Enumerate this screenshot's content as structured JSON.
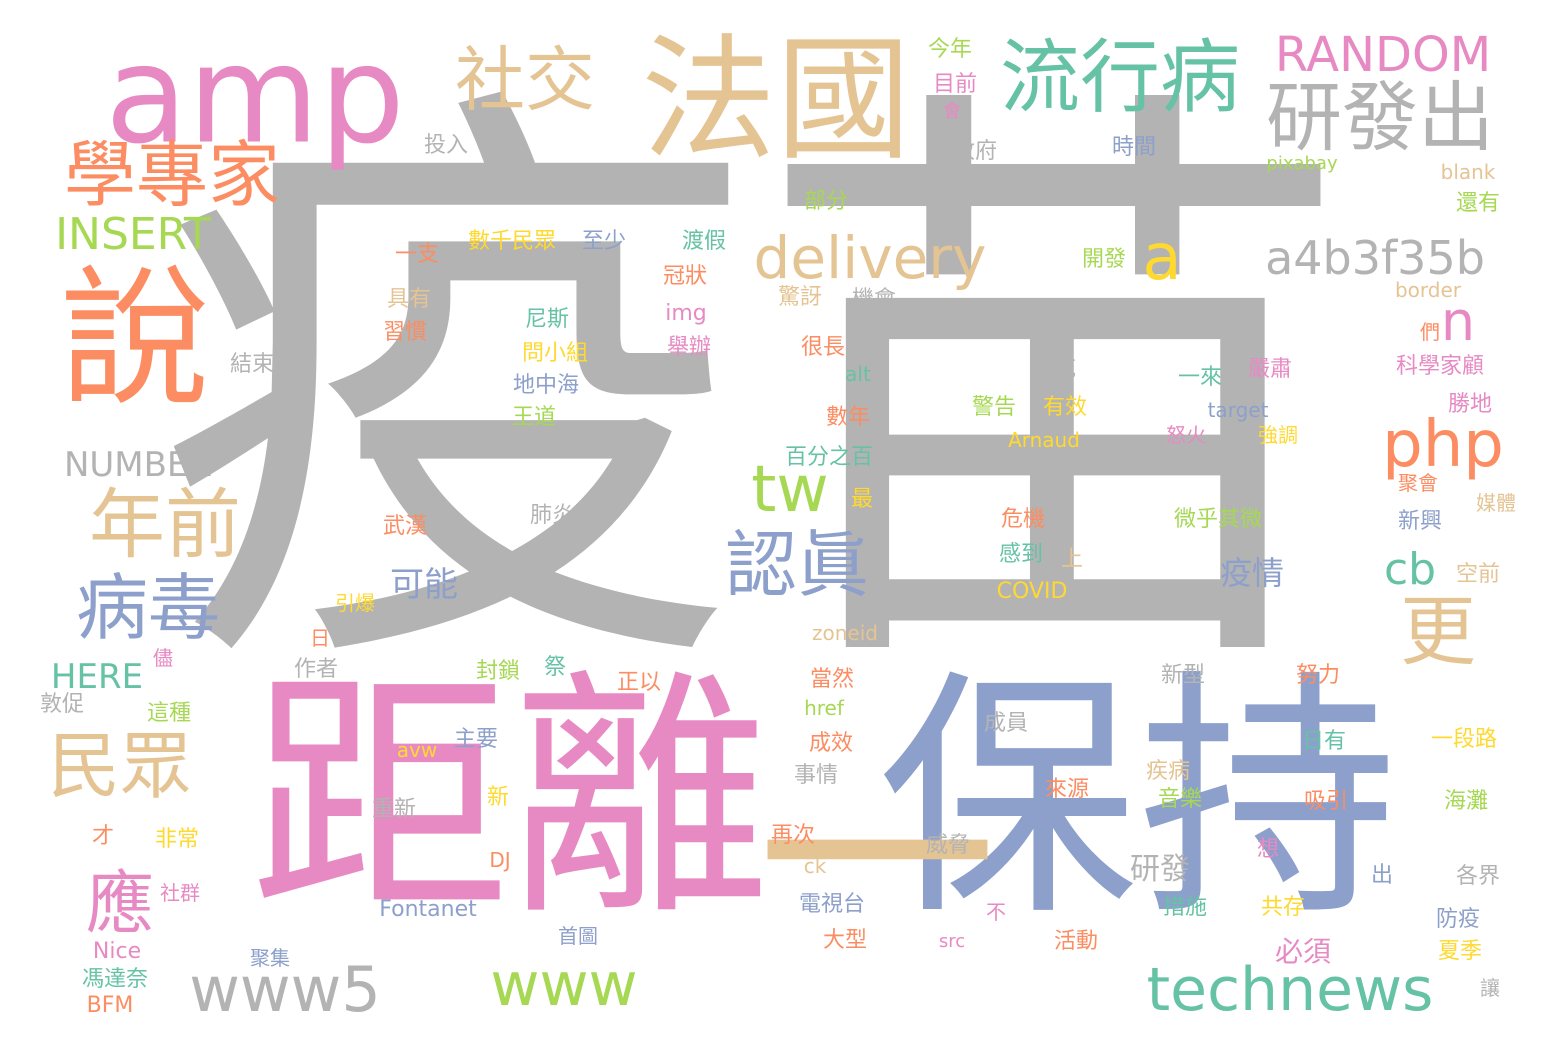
{
  "palette": {
    "gray": "#b3b3b3",
    "pink": "#e78ac3",
    "tan": "#e5c494",
    "blue": "#8da0cb",
    "green": "#66c2a5",
    "orange": "#fc8d62",
    "lime": "#a6d854",
    "yellow": "#ffd92f"
  },
  "words": [
    {
      "text": "疫苗",
      "color": "#b3b3b3"
    },
    {
      "text": "距離",
      "color": "#e78ac3"
    },
    {
      "text": "保持",
      "color": "#8da0cb"
    },
    {
      "text": "一",
      "color": "#e5c494"
    },
    {
      "text": "amp",
      "color": "#e78ac3"
    },
    {
      "text": "法國",
      "color": "#e5c494"
    },
    {
      "text": "流行病",
      "color": "#66c2a5"
    },
    {
      "text": "研發出",
      "color": "#b3b3b3"
    },
    {
      "text": "RANDOM",
      "color": "#e78ac3"
    },
    {
      "text": "社交",
      "color": "#e5c494"
    },
    {
      "text": "學專家",
      "color": "#fc8d62"
    },
    {
      "text": "說",
      "color": "#fc8d62"
    },
    {
      "text": "INSERT",
      "color": "#a6d854"
    },
    {
      "text": "delivery",
      "color": "#e5c494"
    },
    {
      "text": "a",
      "color": "#ffd92f"
    },
    {
      "text": "a4b3f35b",
      "color": "#b3b3b3"
    },
    {
      "text": "php",
      "color": "#fc8d62"
    },
    {
      "text": "n",
      "color": "#e78ac3"
    },
    {
      "text": "年前",
      "color": "#e5c494"
    },
    {
      "text": "tw",
      "color": "#a6d854"
    },
    {
      "text": "認眞",
      "color": "#8da0cb"
    },
    {
      "text": "病毒",
      "color": "#8da0cb"
    },
    {
      "text": "cb",
      "color": "#66c2a5"
    },
    {
      "text": "更",
      "color": "#e5c494"
    },
    {
      "text": "民眾",
      "color": "#e5c494"
    },
    {
      "text": "應",
      "color": "#e78ac3"
    },
    {
      "text": "www5",
      "color": "#b3b3b3"
    },
    {
      "text": "www",
      "color": "#a6d854"
    },
    {
      "text": "technews",
      "color": "#66c2a5"
    },
    {
      "text": "NUMBER",
      "color": "#b3b3b3"
    },
    {
      "text": "HERE",
      "color": "#66c2a5"
    },
    {
      "text": "今年",
      "color": "#a6d854"
    },
    {
      "text": "目前",
      "color": "#e78ac3"
    },
    {
      "text": "會",
      "color": "#e78ac3"
    },
    {
      "text": "投入",
      "color": "#b3b3b3"
    },
    {
      "text": "政府",
      "color": "#b3b3b3"
    },
    {
      "text": "時間",
      "color": "#8da0cb"
    },
    {
      "text": "pixabay",
      "color": "#a6d854"
    },
    {
      "text": "blank",
      "color": "#e5c494"
    },
    {
      "text": "部分",
      "color": "#a6d854"
    },
    {
      "text": "還有",
      "color": "#a6d854"
    },
    {
      "text": "一支",
      "color": "#fc8d62"
    },
    {
      "text": "數千民眾",
      "color": "#ffd92f"
    },
    {
      "text": "至少",
      "color": "#8da0cb"
    },
    {
      "text": "渡假",
      "color": "#66c2a5"
    },
    {
      "text": "開發",
      "color": "#a6d854"
    },
    {
      "text": "冠狀",
      "color": "#fc8d62"
    },
    {
      "text": "驚訝",
      "color": "#e5c494"
    },
    {
      "text": "機會",
      "color": "#b3b3b3"
    },
    {
      "text": "border",
      "color": "#e5c494"
    },
    {
      "text": "具有",
      "color": "#e5c494"
    },
    {
      "text": "尼斯",
      "color": "#66c2a5"
    },
    {
      "text": "img",
      "color": "#e78ac3"
    },
    {
      "text": "們",
      "color": "#fc8d62"
    },
    {
      "text": "習慣",
      "color": "#fc8d62"
    },
    {
      "text": "問小組",
      "color": "#ffd92f"
    },
    {
      "text": "舉辦",
      "color": "#e78ac3"
    },
    {
      "text": "很長",
      "color": "#fc8d62"
    },
    {
      "text": "結束",
      "color": "#b3b3b3"
    },
    {
      "text": "要花",
      "color": "#b3b3b3"
    },
    {
      "text": "一來",
      "color": "#66c2a5"
    },
    {
      "text": "嚴肅",
      "color": "#e78ac3"
    },
    {
      "text": "科學家顧",
      "color": "#e78ac3"
    },
    {
      "text": "地中海",
      "color": "#8da0cb"
    },
    {
      "text": "alt",
      "color": "#66c2a5"
    },
    {
      "text": "勝地",
      "color": "#e78ac3"
    },
    {
      "text": "王道",
      "color": "#a6d854"
    },
    {
      "text": "數年",
      "color": "#fc8d62"
    },
    {
      "text": "警告",
      "color": "#a6d854"
    },
    {
      "text": "有效",
      "color": "#ffd92f"
    },
    {
      "text": "target",
      "color": "#8da0cb"
    },
    {
      "text": "怒火",
      "color": "#e78ac3"
    },
    {
      "text": "強調",
      "color": "#ffd92f"
    },
    {
      "text": "Arnaud",
      "color": "#ffd92f"
    },
    {
      "text": "百分之百",
      "color": "#66c2a5"
    },
    {
      "text": "聚會",
      "color": "#fc8d62"
    },
    {
      "text": "最",
      "color": "#ffd92f"
    },
    {
      "text": "媒體",
      "color": "#e5c494"
    },
    {
      "text": "肺炎",
      "color": "#b3b3b3"
    },
    {
      "text": "武漢",
      "color": "#fc8d62"
    },
    {
      "text": "危機",
      "color": "#fc8d62"
    },
    {
      "text": "微乎其微",
      "color": "#a6d854"
    },
    {
      "text": "新興",
      "color": "#8da0cb"
    },
    {
      "text": "疫情",
      "color": "#8da0cb"
    },
    {
      "text": "可能",
      "color": "#8da0cb"
    },
    {
      "text": "感到",
      "color": "#66c2a5"
    },
    {
      "text": "上",
      "color": "#e5c494"
    },
    {
      "text": "空前",
      "color": "#e5c494"
    },
    {
      "text": "引爆",
      "color": "#ffd92f"
    },
    {
      "text": "COVID",
      "color": "#ffd92f"
    },
    {
      "text": "zoneid",
      "color": "#e5c494"
    },
    {
      "text": "日",
      "color": "#fc8d62"
    },
    {
      "text": "儘",
      "color": "#e78ac3"
    },
    {
      "text": "作者",
      "color": "#b3b3b3"
    },
    {
      "text": "封鎖",
      "color": "#a6d854"
    },
    {
      "text": "祭",
      "color": "#66c2a5"
    },
    {
      "text": "正以",
      "color": "#fc8d62"
    },
    {
      "text": "當然",
      "color": "#fc8d62"
    },
    {
      "text": "新型",
      "color": "#b3b3b3"
    },
    {
      "text": "努力",
      "color": "#fc8d62"
    },
    {
      "text": "敦促",
      "color": "#b3b3b3"
    },
    {
      "text": "這種",
      "color": "#a6d854"
    },
    {
      "text": "href",
      "color": "#a6d854"
    },
    {
      "text": "成員",
      "color": "#b3b3b3"
    },
    {
      "text": "avw",
      "color": "#ffd92f"
    },
    {
      "text": "主要",
      "color": "#8da0cb"
    },
    {
      "text": "成效",
      "color": "#fc8d62"
    },
    {
      "text": "日有",
      "color": "#66c2a5"
    },
    {
      "text": "一段路",
      "color": "#ffd92f"
    },
    {
      "text": "事情",
      "color": "#b3b3b3"
    },
    {
      "text": "疾病",
      "color": "#e5c494"
    },
    {
      "text": "新",
      "color": "#ffd92f"
    },
    {
      "text": "來源",
      "color": "#fc8d62"
    },
    {
      "text": "音樂",
      "color": "#a6d854"
    },
    {
      "text": "吸引",
      "color": "#fc8d62"
    },
    {
      "text": "海灘",
      "color": "#a6d854"
    },
    {
      "text": "重新",
      "color": "#b3b3b3"
    },
    {
      "text": "才",
      "color": "#fc8d62"
    },
    {
      "text": "非常",
      "color": "#ffd92f"
    },
    {
      "text": "再次",
      "color": "#fc8d62"
    },
    {
      "text": "威脅",
      "color": "#b3b3b3"
    },
    {
      "text": "想",
      "color": "#e78ac3"
    },
    {
      "text": "DJ",
      "color": "#fc8d62"
    },
    {
      "text": "ck",
      "color": "#e5c494"
    },
    {
      "text": "研發",
      "color": "#b3b3b3"
    },
    {
      "text": "出",
      "color": "#8da0cb"
    },
    {
      "text": "各界",
      "color": "#b3b3b3"
    },
    {
      "text": "社群",
      "color": "#e78ac3"
    },
    {
      "text": "電視台",
      "color": "#8da0cb"
    },
    {
      "text": "Fontanet",
      "color": "#8da0cb"
    },
    {
      "text": "不",
      "color": "#e78ac3"
    },
    {
      "text": "措施",
      "color": "#66c2a5"
    },
    {
      "text": "共存",
      "color": "#ffd92f"
    },
    {
      "text": "防疫",
      "color": "#8da0cb"
    },
    {
      "text": "Nice",
      "color": "#e78ac3"
    },
    {
      "text": "首圖",
      "color": "#8da0cb"
    },
    {
      "text": "大型",
      "color": "#fc8d62"
    },
    {
      "text": "src",
      "color": "#e78ac3"
    },
    {
      "text": "活動",
      "color": "#fc8d62"
    },
    {
      "text": "必須",
      "color": "#e78ac3"
    },
    {
      "text": "夏季",
      "color": "#ffd92f"
    },
    {
      "text": "聚集",
      "color": "#8da0cb"
    },
    {
      "text": "馮達奈",
      "color": "#66c2a5"
    },
    {
      "text": "BFM",
      "color": "#fc8d62"
    },
    {
      "text": "讓",
      "color": "#b3b3b3"
    }
  ]
}
